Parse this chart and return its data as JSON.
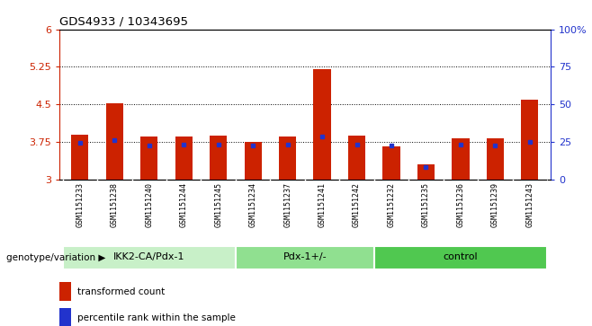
{
  "title": "GDS4933 / 10343695",
  "samples": [
    "GSM1151233",
    "GSM1151238",
    "GSM1151240",
    "GSM1151244",
    "GSM1151245",
    "GSM1151234",
    "GSM1151237",
    "GSM1151241",
    "GSM1151242",
    "GSM1151232",
    "GSM1151235",
    "GSM1151236",
    "GSM1151239",
    "GSM1151243"
  ],
  "bar_heights": [
    3.9,
    4.52,
    3.85,
    3.85,
    3.88,
    3.75,
    3.85,
    5.2,
    3.87,
    3.65,
    3.3,
    3.82,
    3.82,
    4.6
  ],
  "blue_values": [
    3.73,
    3.78,
    3.68,
    3.7,
    3.7,
    3.67,
    3.7,
    3.85,
    3.7,
    3.68,
    3.25,
    3.7,
    3.68,
    3.75
  ],
  "ylim_left": [
    3,
    6
  ],
  "ylim_right": [
    0,
    100
  ],
  "yticks_left": [
    3,
    3.75,
    4.5,
    5.25,
    6
  ],
  "yticks_right": [
    0,
    25,
    50,
    75,
    100
  ],
  "yticklabels_left": [
    "3",
    "3.75",
    "4.5",
    "5.25",
    "6"
  ],
  "yticklabels_right": [
    "0",
    "25",
    "50",
    "75",
    "100%"
  ],
  "hlines": [
    3.75,
    4.5,
    5.25
  ],
  "groups": [
    {
      "label": "IKK2-CA/Pdx-1",
      "start": 0,
      "end": 5,
      "color": "#c8f0c8"
    },
    {
      "label": "Pdx-1+/-",
      "start": 5,
      "end": 9,
      "color": "#90e090"
    },
    {
      "label": "control",
      "start": 9,
      "end": 14,
      "color": "#50c850"
    }
  ],
  "bar_color": "#cc2200",
  "blue_color": "#2233cc",
  "bar_width": 0.5,
  "left_axis_color": "#cc2200",
  "right_axis_color": "#2233cc",
  "legend_items": [
    "transformed count",
    "percentile rank within the sample"
  ],
  "background_gray": "#d0d0d0",
  "xlabel_text": "genotype/variation"
}
